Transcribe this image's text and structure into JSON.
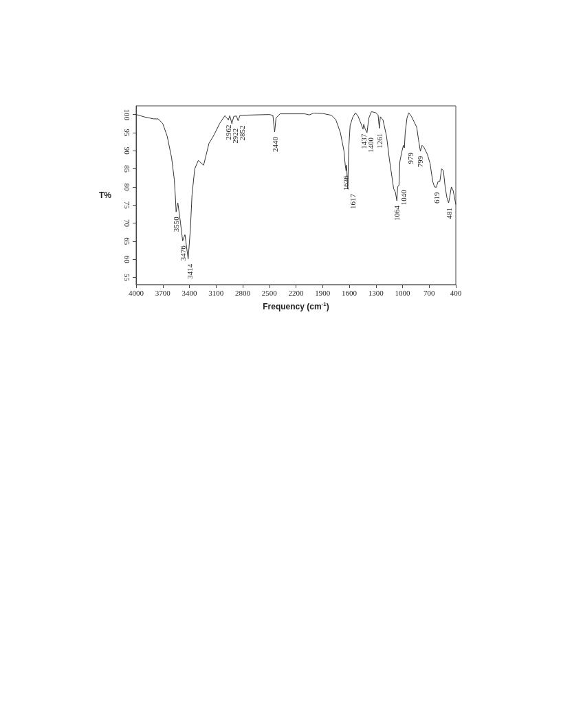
{
  "chart_data": {
    "type": "line",
    "xlabel": "Frequency (cm$^{-1}$)",
    "ylabel": "T%",
    "xlim": [
      4000,
      400
    ],
    "ylim": [
      53,
      102.4
    ],
    "xticks": [
      4000,
      3700,
      3400,
      3100,
      2800,
      2500,
      2200,
      1900,
      1600,
      1300,
      1000,
      700,
      400
    ],
    "yticks": [
      55,
      60,
      65,
      70,
      75,
      80,
      85,
      90,
      95,
      100
    ],
    "grid": false,
    "marker": "none",
    "line_style": "solid",
    "series": [
      {
        "color": "#333333",
        "x": [
          4000,
          3900,
          3800,
          3750,
          3700,
          3650,
          3600,
          3570,
          3555,
          3550,
          3530,
          3500,
          3476,
          3450,
          3414,
          3390,
          3370,
          3340,
          3300,
          3240,
          3220,
          3180,
          3120,
          3060,
          3000,
          2962,
          2945,
          2922,
          2900,
          2870,
          2852,
          2830,
          2500,
          2460,
          2440,
          2425,
          2380,
          2100,
          2050,
          2000,
          1900,
          1800,
          1750,
          1700,
          1660,
          1645,
          1636,
          1630,
          1617,
          1605,
          1590,
          1560,
          1530,
          1500,
          1460,
          1445,
          1437,
          1420,
          1400,
          1380,
          1350,
          1300,
          1275,
          1261,
          1250,
          1220,
          1180,
          1150,
          1100,
          1080,
          1064,
          1055,
          1040,
          1030,
          1010,
          990,
          979,
          970,
          950,
          930,
          900,
          870,
          840,
          820,
          799,
          780,
          760,
          720,
          690,
          660,
          640,
          619,
          600,
          580,
          560,
          540,
          520,
          500,
          481,
          470,
          450,
          430,
          400
        ],
        "values": [
          100,
          99.3,
          98.8,
          98.8,
          97.5,
          94,
          88,
          82,
          76,
          73.1,
          75.6,
          70,
          65.1,
          66.8,
          60.1,
          68,
          78,
          85,
          87.3,
          86,
          88,
          92,
          94.5,
          97.5,
          99.7,
          98.5,
          99.7,
          97.5,
          99.5,
          99.6,
          98.3,
          99.8,
          100,
          99.8,
          95.2,
          99,
          100.2,
          100.2,
          99.9,
          100.4,
          100.3,
          99.8,
          98.5,
          95,
          90,
          86,
          84.5,
          86,
          79.4,
          91,
          97,
          99.3,
          100.5,
          99.5,
          97,
          96,
          97.3,
          96,
          95,
          99,
          100.8,
          100.5,
          99.8,
          96.2,
          99.4,
          98.5,
          94,
          88,
          79.5,
          78.5,
          76.2,
          80,
          80.5,
          87,
          89.5,
          91.5,
          90.8,
          95,
          99,
          100.5,
          99.5,
          98,
          96.5,
          93,
          89.9,
          91.5,
          91,
          89,
          86.5,
          81.5,
          80,
          79.9,
          81.5,
          81.5,
          85,
          84.5,
          80,
          77,
          75.6,
          77,
          80,
          79,
          75.2
        ]
      }
    ],
    "annotations": [
      {
        "text": "3550",
        "x": 3550,
        "y": 73.1
      },
      {
        "text": "3476",
        "x": 3476,
        "y": 65.1
      },
      {
        "text": "3414",
        "x": 3414,
        "y": 60.1
      },
      {
        "text": "2962",
        "x": 2962,
        "y": 98.5
      },
      {
        "text": "2922",
        "x": 2922,
        "y": 97.5
      },
      {
        "text": "2852",
        "x": 2852,
        "y": 98.3
      },
      {
        "text": "2440",
        "x": 2440,
        "y": 95.2
      },
      {
        "text": "1636",
        "x": 1636,
        "y": 84.5
      },
      {
        "text": "1617",
        "x": 1617,
        "y": 79.4
      },
      {
        "text": "1437",
        "x": 1437,
        "y": 97.3
      },
      {
        "text": "1400",
        "x": 1400,
        "y": 95
      },
      {
        "text": "1261",
        "x": 1261,
        "y": 96.2
      },
      {
        "text": "1064",
        "x": 1064,
        "y": 76.2
      },
      {
        "text": "1040",
        "x": 1040,
        "y": 80.5
      },
      {
        "text": "979",
        "x": 979,
        "y": 90.8
      },
      {
        "text": "799",
        "x": 799,
        "y": 89.9
      },
      {
        "text": "619",
        "x": 619,
        "y": 79.9
      },
      {
        "text": "481",
        "x": 481,
        "y": 75.6
      }
    ]
  }
}
